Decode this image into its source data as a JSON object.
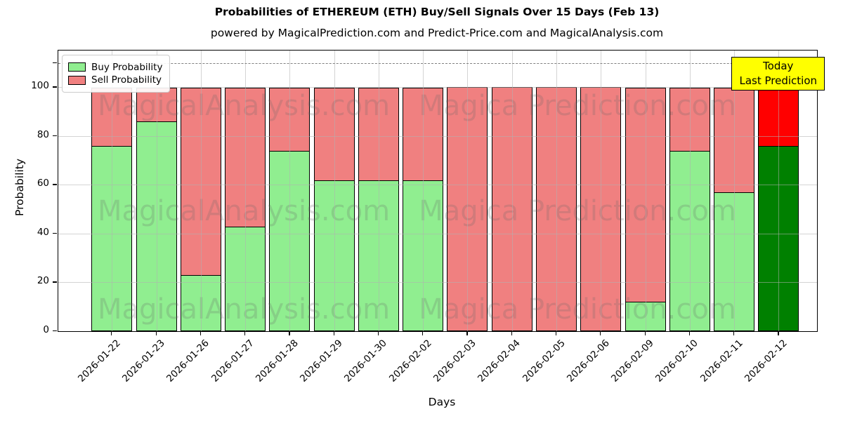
{
  "title": "Probabilities of ETHEREUM (ETH) Buy/Sell Signals Over 15 Days (Feb 13)",
  "subtitle": "powered by MagicalPrediction.com and Predict-Price.com and MagicalAnalysis.com",
  "axes": {
    "xlabel": "Days",
    "ylabel": "Probability"
  },
  "legend": {
    "items": [
      {
        "label": "Buy Probability",
        "color": "#90EE90"
      },
      {
        "label": "Sell Probability",
        "color": "#F08080"
      }
    ]
  },
  "annotation": {
    "line1": "Today",
    "line2": "Last Prediction",
    "bg_color": "#FFFF00"
  },
  "watermarks": {
    "left_text": "MagicalAnalysis.com",
    "right_text": "Magica Prediction.com"
  },
  "colors": {
    "buy": "#90EE90",
    "sell": "#F08080",
    "today_buy": "#008000",
    "today_sell": "#FF0000",
    "bar_edge": "#000000",
    "grid": "#b0b0b0",
    "dashed_line": "#7f7f7f",
    "watermark": "rgba(100,100,100,0.22)"
  },
  "chart_data": {
    "type": "bar",
    "stacked": true,
    "title": "Probabilities of ETHEREUM (ETH) Buy/Sell Signals Over 15 Days (Feb 13)",
    "xlabel": "Days",
    "ylabel": "Probability",
    "categories": [
      "2026-01-22",
      "2026-01-23",
      "2026-01-26",
      "2026-01-27",
      "2026-01-28",
      "2026-01-29",
      "2026-01-30",
      "2026-02-02",
      "2026-02-03",
      "2026-02-04",
      "2026-02-05",
      "2026-02-06",
      "2026-02-09",
      "2026-02-10",
      "2026-02-11",
      "2026-02-12"
    ],
    "series": [
      {
        "name": "Buy Probability",
        "values": [
          76,
          86,
          23,
          43,
          74,
          62,
          62,
          62,
          0,
          0,
          0,
          0,
          12,
          74,
          57,
          76
        ]
      },
      {
        "name": "Sell Probability",
        "values": [
          24,
          14,
          77,
          57,
          26,
          38,
          38,
          38,
          100,
          100,
          100,
          100,
          88,
          26,
          43,
          24
        ]
      }
    ],
    "yticks": [
      0,
      20,
      40,
      60,
      80,
      100
    ],
    "ylim": [
      0,
      115
    ],
    "dashed_line_y": 110,
    "grid": true,
    "legend_position": "upper left",
    "last_bar_highlighted": true
  }
}
